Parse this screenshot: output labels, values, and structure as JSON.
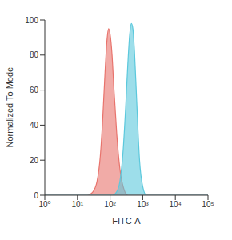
{
  "chart_data": {
    "type": "area",
    "x_label": "FITC-A",
    "y_label": "Normalized To Mode",
    "log": "x",
    "grid": false,
    "xlim": [
      1,
      100000
    ],
    "xticks": [
      {
        "value": 1,
        "label": "10⁰"
      },
      {
        "value": 10,
        "label": "10¹"
      },
      {
        "value": 100,
        "label": "10²"
      },
      {
        "value": 1000,
        "label": "10³"
      },
      {
        "value": 10000,
        "label": "10⁴"
      },
      {
        "value": 100000,
        "label": "10⁵"
      }
    ],
    "ylim": [
      0,
      100
    ],
    "yticks": [
      0,
      20,
      40,
      60,
      80,
      100
    ],
    "series": [
      {
        "color": "#e8736c",
        "x": [
          1,
          20,
          30,
          40,
          50,
          60,
          70,
          80,
          90,
          100,
          115,
          130,
          160,
          200,
          260,
          350,
          100000
        ],
        "values": [
          0,
          0,
          2,
          8,
          22,
          45,
          70,
          88,
          95,
          92,
          80,
          62,
          35,
          15,
          4,
          0,
          0
        ]
      },
      {
        "color": "#5bc8dc",
        "x": [
          1,
          120,
          160,
          200,
          250,
          300,
          350,
          400,
          450,
          500,
          560,
          650,
          800,
          1000,
          1300,
          100000
        ],
        "values": [
          0,
          0,
          2,
          8,
          25,
          50,
          75,
          92,
          98,
          95,
          82,
          55,
          20,
          5,
          0,
          0
        ]
      }
    ]
  }
}
